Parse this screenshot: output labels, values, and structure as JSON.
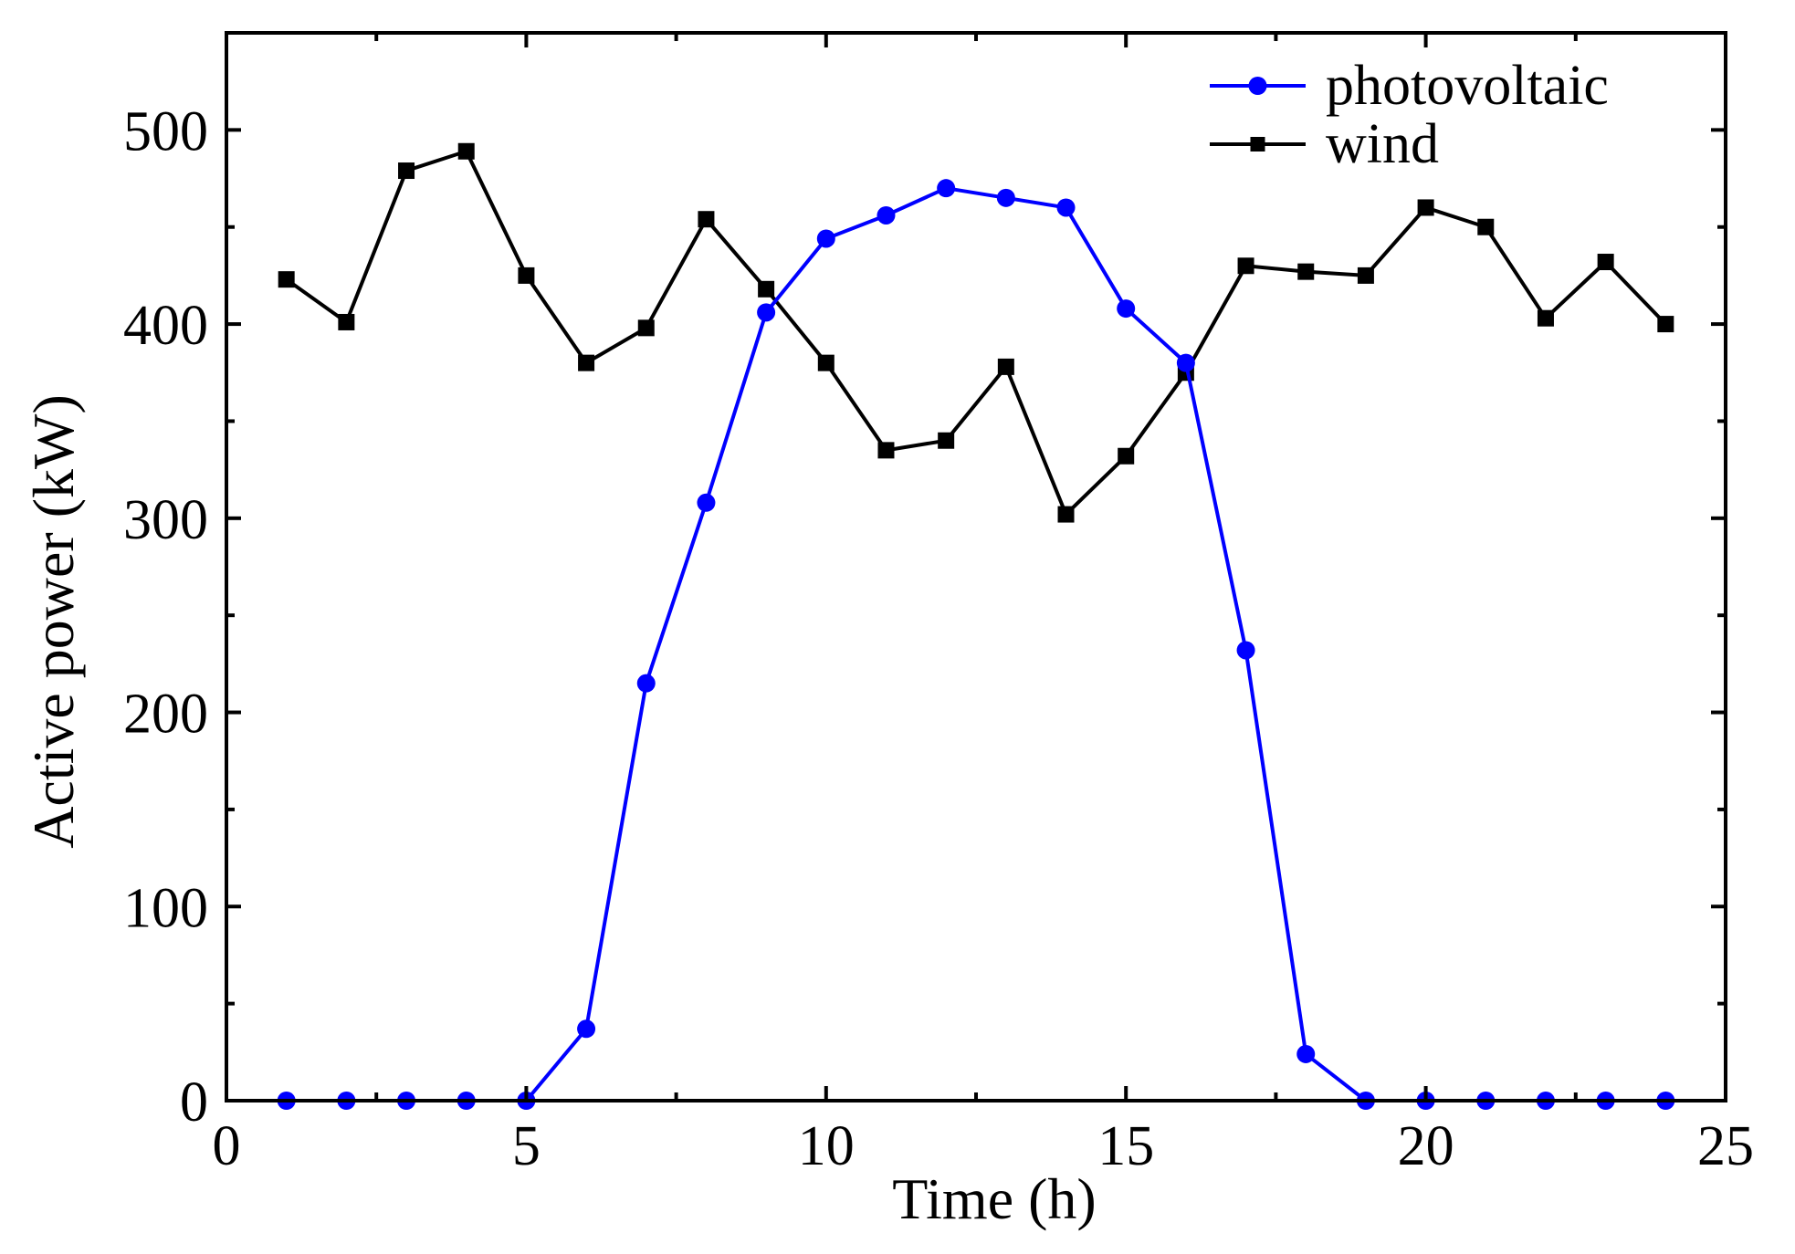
{
  "chart_data": {
    "type": "line",
    "title": "",
    "xlabel": "Time (h)",
    "ylabel": "Active power (kW)",
    "xlim": [
      0,
      25
    ],
    "ylim": [
      0,
      550
    ],
    "xticks": [
      0,
      5,
      10,
      15,
      20,
      25
    ],
    "xtick_labels": [
      "0",
      "5",
      "10",
      "15",
      "20",
      "25"
    ],
    "yticks": [
      0,
      100,
      200,
      300,
      400,
      500
    ],
    "ytick_labels": [
      "0",
      "100",
      "200",
      "300",
      "400",
      "500"
    ],
    "x_minor_step": 2.5,
    "y_minor_step": 50,
    "grid": false,
    "legend_position": "top-right",
    "x": [
      1,
      2,
      3,
      4,
      5,
      6,
      7,
      8,
      9,
      10,
      11,
      12,
      13,
      14,
      15,
      16,
      17,
      18,
      19,
      20,
      21,
      22,
      23,
      24
    ],
    "series": [
      {
        "name": "photovoltaic",
        "color": "#0000ff",
        "marker": "circle",
        "values": [
          0,
          0,
          0,
          0,
          0,
          37,
          215,
          308,
          406,
          444,
          456,
          470,
          465,
          460,
          408,
          380,
          232,
          24,
          0,
          0,
          0,
          0,
          0,
          0
        ]
      },
      {
        "name": "wind",
        "color": "#000000",
        "marker": "square",
        "values": [
          423,
          401,
          479,
          489,
          425,
          380,
          398,
          454,
          418,
          380,
          335,
          340,
          378,
          302,
          332,
          375,
          430,
          427,
          425,
          460,
          450,
          403,
          432,
          400
        ]
      }
    ]
  }
}
